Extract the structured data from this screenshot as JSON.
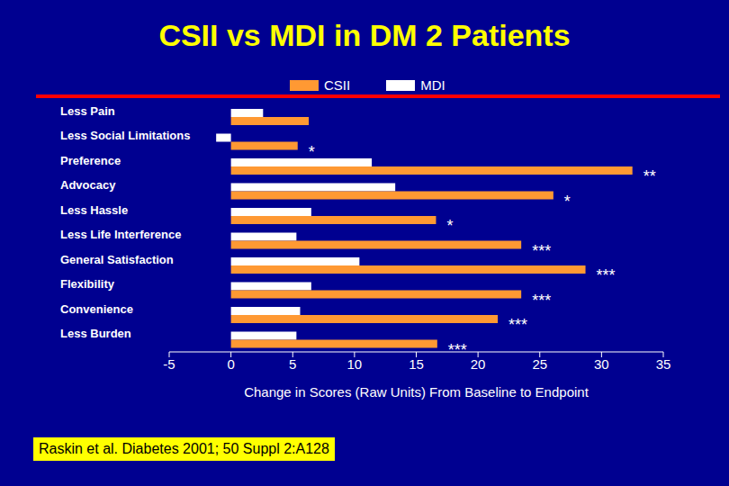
{
  "chart_data": {
    "type": "bar",
    "orientation": "horizontal",
    "title": "CSII vs MDI in DM 2 Patients",
    "x_label": "Change in Scores (Raw Units) From Baseline to Endpoint",
    "categories": [
      "Less Pain",
      "Less Social Limitations",
      "Preference",
      "Advocacy",
      "Less Hassle",
      "Less Life Interference",
      "General Satisfaction",
      "Flexibility",
      "Convenience",
      "Less Burden"
    ],
    "series": [
      {
        "name": "CSII",
        "color": "#ff9933",
        "values": [
          6.3,
          5.4,
          32.5,
          26.1,
          16.6,
          23.5,
          28.7,
          23.5,
          21.6,
          16.7
        ]
      },
      {
        "name": "MDI",
        "color": "#ffffff",
        "values": [
          2.6,
          -1.2,
          11.4,
          13.3,
          6.5,
          5.3,
          10.4,
          6.5,
          5.6,
          5.3
        ]
      }
    ],
    "annotations": [
      null,
      "*",
      "**",
      "*",
      "*",
      "***",
      "***",
      "***",
      "***",
      "***"
    ],
    "xlim": [
      -5,
      35
    ],
    "xticks": [
      -5,
      0,
      5,
      10,
      15,
      20,
      25,
      30,
      35
    ],
    "legend": "top",
    "source": "Raskin et al. Diabetes 2001; 50 Suppl 2:A128"
  }
}
